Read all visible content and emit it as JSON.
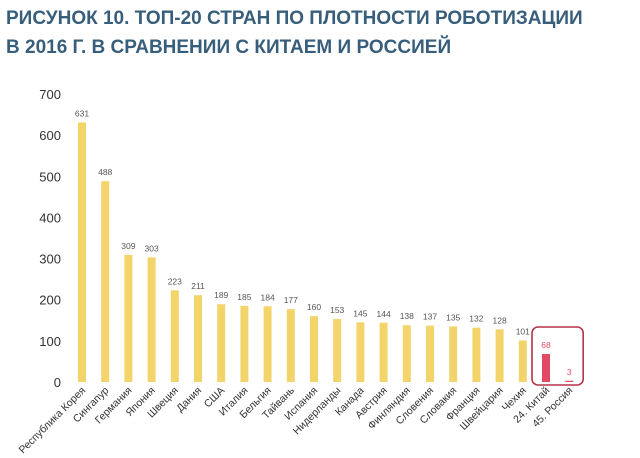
{
  "title_lines": [
    "РИСУНОК 10. ТОП-20 СТРАН ПО ПЛОТНОСТИ РОБОТИЗАЦИИ",
    "В 2016 Г. В СРАВНЕНИИ С КИТАЕМ И РОССИЕЙ"
  ],
  "colors": {
    "title": "#375e7a",
    "bar": "#f2d46b",
    "highlight_bar": "#e24b63",
    "highlight_box": "#b5344a",
    "axis_text": "#333333",
    "value_text": "#555555"
  },
  "chart_data": {
    "type": "bar",
    "title": "РИСУНОК 10. ТОП-20 СТРАН ПО ПЛОТНОСТИ РОБОТИЗАЦИИ В 2016 Г. В СРАВНЕНИИ С КИТАЕМ И РОССИЕЙ",
    "xlabel": "",
    "ylabel": "",
    "ylim": [
      0,
      700
    ],
    "yticks": [
      0,
      100,
      200,
      300,
      400,
      500,
      600,
      700
    ],
    "grid": false,
    "legend": "none",
    "categories": [
      "Республика Корея",
      "Сингапур",
      "Германия",
      "Япония",
      "Швеция",
      "Дания",
      "США",
      "Италия",
      "Бельгия",
      "Тайвань",
      "Испания",
      "Нидерланды",
      "Канада",
      "Австрия",
      "Финляндия",
      "Словения",
      "Словакия",
      "Франция",
      "Швейцария",
      "Чехия",
      "24. Китай",
      "45. Россия"
    ],
    "values": [
      631,
      488,
      309,
      303,
      223,
      211,
      189,
      185,
      184,
      177,
      160,
      153,
      145,
      144,
      138,
      137,
      135,
      132,
      128,
      101,
      68,
      3
    ],
    "highlighted": [
      "24. Китай",
      "45. Россия"
    ]
  }
}
